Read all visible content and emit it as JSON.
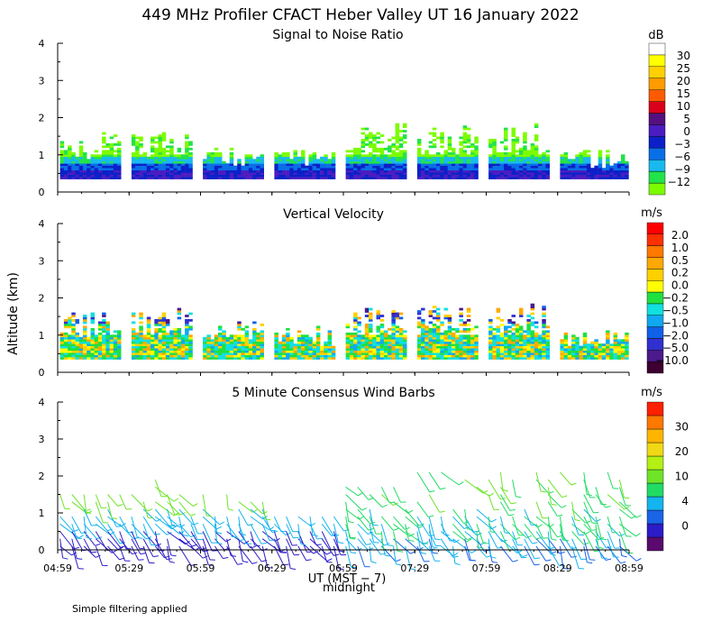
{
  "title": "449 MHz Profiler CFACT Heber Valley UT 16 January 2022",
  "footnote": "Simple filtering applied",
  "x_axis": {
    "label": "UT  (MST − 7)",
    "sublabel": "midnight",
    "ticks": [
      "04:59",
      "05:29",
      "05:59",
      "06:29",
      "06:59",
      "07:29",
      "07:59",
      "08:29",
      "08:59"
    ]
  },
  "y_axis": {
    "label": "Altitude (km)",
    "ticks": [
      "0",
      "1",
      "2",
      "3",
      "4"
    ]
  },
  "colors": {
    "snr": [
      "#7cfc00",
      "#22e34a",
      "#19b9ee",
      "#0a6ee6",
      "#0b20c8",
      "#4b1cc0",
      "#55107f",
      "#d9001a",
      "#ff5a00",
      "#ff9c00",
      "#ffd000",
      "#ffff00",
      "#ffffff"
    ],
    "vv": [
      "#3d0030",
      "#4b1a8c",
      "#3030d0",
      "#1060e8",
      "#10a8f0",
      "#10e0e0",
      "#20e040",
      "#ffff00",
      "#ffd000",
      "#ffa800",
      "#ff7800",
      "#ff3000",
      "#ff0000"
    ],
    "wind": [
      "#5a0a6e",
      "#2c1cc8",
      "#1a64e8",
      "#14b4f0",
      "#20dc64",
      "#6ee428",
      "#b4f014",
      "#f0d814",
      "#ffb400",
      "#ff7800",
      "#ff2000"
    ]
  },
  "chart_data": [
    {
      "type": "heatmap",
      "title": "Signal to Noise Ratio",
      "unit": "dB",
      "colorbar_ticks": [
        "30",
        "25",
        "20",
        "15",
        "10",
        "5",
        "0",
        "−3",
        "−6",
        "−9",
        "−12"
      ],
      "ylim": [
        0,
        4
      ],
      "xlim": [
        "04:59",
        "08:59"
      ],
      "data_bottom_km": 0.35,
      "top_km_by_period": [
        {
          "start": "05:00",
          "end": "05:25",
          "top_km": 1.6
        },
        {
          "start": "05:30",
          "end": "05:55",
          "top_km": 1.6
        },
        {
          "start": "06:00",
          "end": "06:25",
          "top_km": 1.2
        },
        {
          "start": "06:30",
          "end": "06:55",
          "top_km": 1.2
        },
        {
          "start": "07:00",
          "end": "07:25",
          "top_km": 1.8
        },
        {
          "start": "07:30",
          "end": "07:55",
          "top_km": 1.8
        },
        {
          "start": "08:00",
          "end": "08:25",
          "top_km": 1.8
        },
        {
          "start": "08:30",
          "end": "08:58",
          "top_km": 1.1
        }
      ]
    },
    {
      "type": "heatmap",
      "title": "Vertical Velocity",
      "unit": "m/s",
      "colorbar_ticks": [
        "2.0",
        "1.0",
        "0.5",
        "0.2",
        "0.0",
        "−0.2",
        "−0.5",
        "−1.0",
        "−2.0",
        "−5.0",
        "−10.0"
      ],
      "ylim": [
        0,
        4
      ],
      "xlim": [
        "04:59",
        "08:59"
      ],
      "data_bottom_km": 0.35,
      "top_km_by_period": [
        {
          "start": "05:00",
          "end": "05:25",
          "top_km": 1.6
        },
        {
          "start": "05:30",
          "end": "05:55",
          "top_km": 1.7
        },
        {
          "start": "06:00",
          "end": "06:25",
          "top_km": 1.4
        },
        {
          "start": "06:30",
          "end": "06:55",
          "top_km": 1.2
        },
        {
          "start": "07:00",
          "end": "07:25",
          "top_km": 1.8
        },
        {
          "start": "07:30",
          "end": "07:55",
          "top_km": 1.8
        },
        {
          "start": "08:00",
          "end": "08:25",
          "top_km": 1.8
        },
        {
          "start": "08:30",
          "end": "08:58",
          "top_km": 1.1
        }
      ]
    },
    {
      "type": "scatter",
      "title": "5 Minute Consensus Wind Barbs",
      "unit": "m/s",
      "colorbar_ticks": [
        "30",
        "20",
        "10",
        "4",
        "0"
      ],
      "ylim": [
        0,
        4
      ],
      "xlim": [
        "04:59",
        "08:59"
      ],
      "levels_km": [
        0.1,
        0.3,
        0.5,
        0.7,
        0.9,
        1.1,
        1.3,
        1.5,
        1.7,
        1.9,
        2.1
      ]
    }
  ]
}
